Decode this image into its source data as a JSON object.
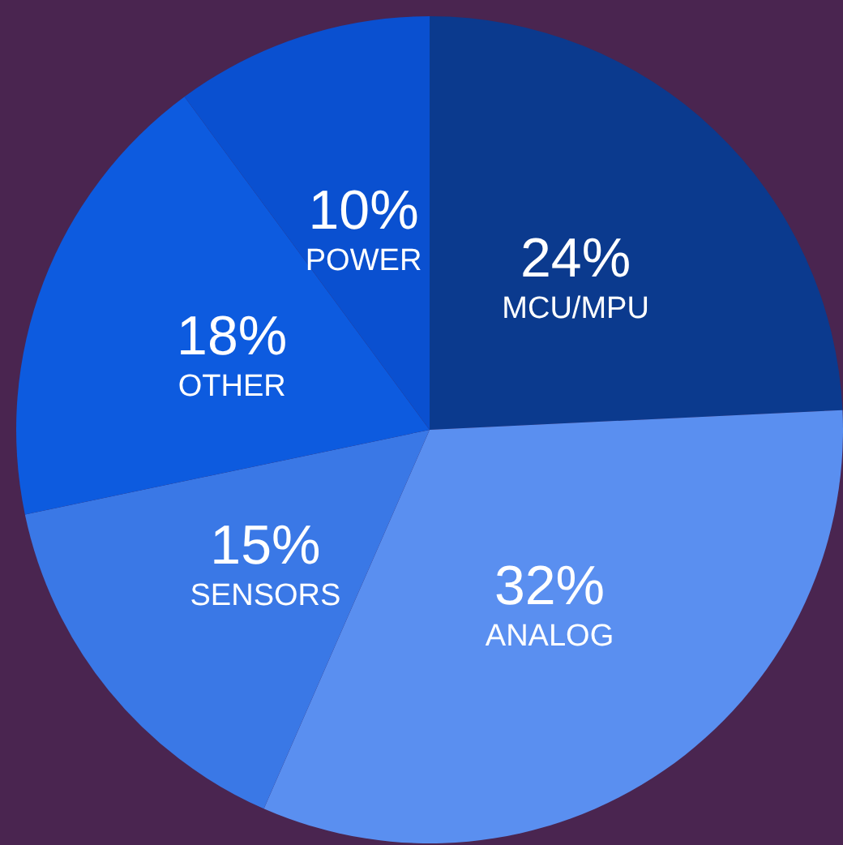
{
  "chart_data": {
    "type": "pie",
    "categories": [
      "MCU/MPU",
      "ANALOG",
      "SENSORS",
      "OTHER",
      "POWER"
    ],
    "values": [
      24,
      32,
      15,
      18,
      10
    ],
    "value_labels": [
      "24%",
      "32%",
      "15%",
      "18%",
      "10%"
    ],
    "colors": [
      "#0b3a8e",
      "#5a8ff0",
      "#3a78e6",
      "#0d5bdf",
      "#0a50d0"
    ],
    "legend": false
  }
}
